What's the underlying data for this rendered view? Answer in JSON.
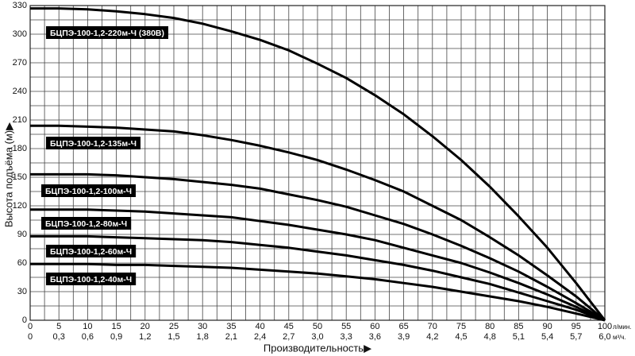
{
  "chart_data": {
    "type": "line",
    "x_label": "Производительность▶",
    "y_label": "Высота подъёма (м)▶",
    "x_unit": "л/мин.",
    "x2_unit": "м³/ч.",
    "x": [
      0,
      5,
      10,
      15,
      20,
      25,
      30,
      35,
      40,
      45,
      50,
      55,
      60,
      65,
      70,
      75,
      80,
      85,
      90,
      95,
      100
    ],
    "series": [
      {
        "name": "БЦПЭ-100-1,2-220м-Ч (380В)",
        "color": "#000000",
        "values": [
          327,
          327,
          326,
          324,
          321,
          317,
          311,
          303,
          294,
          283,
          269,
          254,
          236,
          216,
          193,
          168,
          140,
          109,
          76,
          39,
          0
        ]
      },
      {
        "name": "БЦПЭ-100-1,2-135м-Ч",
        "color": "#000000",
        "values": [
          204,
          204,
          203,
          202,
          200,
          198,
          194,
          189,
          183,
          176,
          168,
          158,
          147,
          135,
          120,
          105,
          87,
          68,
          47,
          25,
          0
        ]
      },
      {
        "name": "БЦПЭ-100-1,2-100м-Ч",
        "color": "#000000",
        "values": [
          153,
          153,
          153,
          152,
          150,
          148,
          145,
          142,
          138,
          132,
          126,
          119,
          110,
          101,
          90,
          78,
          65,
          51,
          35,
          18,
          0
        ]
      },
      {
        "name": "БЦПЭ-100-1,2-80м-Ч",
        "color": "#000000",
        "values": [
          116,
          116,
          116,
          115,
          114,
          112,
          110,
          108,
          104,
          100,
          95,
          90,
          84,
          76,
          68,
          60,
          50,
          39,
          27,
          14,
          0
        ]
      },
      {
        "name": "БЦПЭ-100-1,2-60м-Ч",
        "color": "#000000",
        "values": [
          88,
          88,
          88,
          87,
          86,
          85,
          84,
          82,
          79,
          76,
          72,
          68,
          63,
          58,
          52,
          45,
          38,
          29,
          20,
          11,
          0
        ]
      },
      {
        "name": "БЦПЭ-100-1,2-40м-Ч",
        "color": "#000000",
        "values": [
          59,
          59,
          59,
          58,
          58,
          57,
          56,
          55,
          53,
          51,
          49,
          46,
          43,
          39,
          35,
          30,
          25,
          20,
          14,
          7,
          0
        ]
      }
    ],
    "xlim": [
      0,
      100
    ],
    "ylim": [
      0,
      330
    ],
    "xticks": [
      0,
      5,
      10,
      15,
      20,
      25,
      30,
      35,
      40,
      45,
      50,
      55,
      60,
      65,
      70,
      75,
      80,
      85,
      90,
      95,
      100
    ],
    "x2ticks": [
      {
        "value": 0,
        "label": "0"
      },
      {
        "value": 5,
        "label": "0,3"
      },
      {
        "value": 10,
        "label": "0,6"
      },
      {
        "value": 15,
        "label": "0,9"
      },
      {
        "value": 20,
        "label": "1,2"
      },
      {
        "value": 25,
        "label": "1,5"
      },
      {
        "value": 30,
        "label": "1,8"
      },
      {
        "value": 35,
        "label": "2,1"
      },
      {
        "value": 40,
        "label": "2,4"
      },
      {
        "value": 45,
        "label": "2,7"
      },
      {
        "value": 50,
        "label": "3,0"
      },
      {
        "value": 55,
        "label": "3,3"
      },
      {
        "value": 60,
        "label": "3,6"
      },
      {
        "value": 65,
        "label": "3,9"
      },
      {
        "value": 70,
        "label": "4,2"
      },
      {
        "value": 75,
        "label": "4,5"
      },
      {
        "value": 80,
        "label": "4,8"
      },
      {
        "value": 85,
        "label": "5,1"
      },
      {
        "value": 90,
        "label": "5,4"
      },
      {
        "value": 95,
        "label": "5,7"
      },
      {
        "value": 100,
        "label": "6,0"
      }
    ],
    "yticks": [
      0,
      30,
      60,
      90,
      120,
      150,
      180,
      210,
      240,
      270,
      300,
      330
    ],
    "grid": true
  }
}
